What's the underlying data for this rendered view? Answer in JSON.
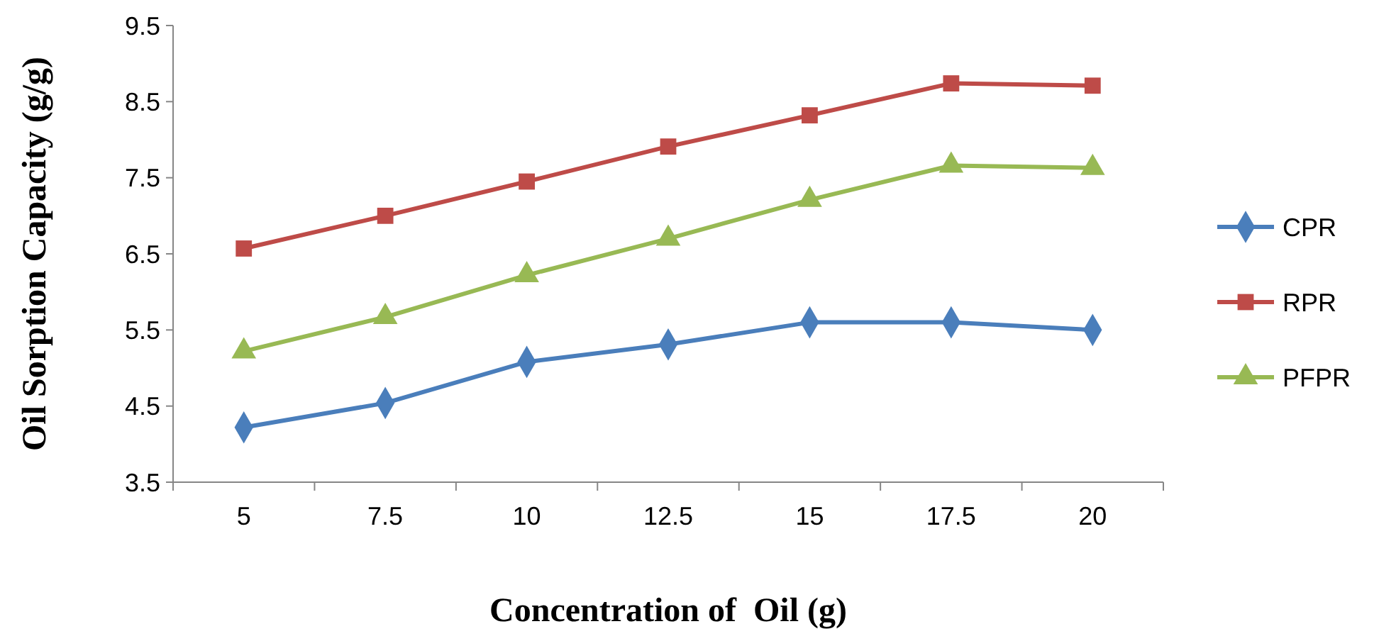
{
  "chart_data": {
    "type": "line",
    "xlabel": "Concentration of  Oil (g)",
    "ylabel": "Oil Sorption Capacity (g/g)",
    "categories": [
      "5",
      "7.5",
      "10",
      "12.5",
      "15",
      "17.5",
      "20"
    ],
    "ylim": [
      3.5,
      9.5
    ],
    "yticks": [
      3.5,
      4.5,
      5.5,
      6.5,
      7.5,
      8.5,
      9.5
    ],
    "grid": false,
    "legend": "right",
    "series": [
      {
        "name": "CPR",
        "color": "#4a7ebb",
        "marker": "diamond",
        "values": [
          4.22,
          4.54,
          5.08,
          5.31,
          5.6,
          5.6,
          5.5
        ]
      },
      {
        "name": "RPR",
        "color": "#be4b48",
        "marker": "square",
        "values": [
          6.57,
          7.0,
          7.45,
          7.91,
          8.32,
          8.74,
          8.71
        ]
      },
      {
        "name": "PFPR",
        "color": "#98b954",
        "marker": "triangle",
        "values": [
          5.22,
          5.67,
          6.22,
          6.7,
          7.21,
          7.66,
          7.63
        ]
      }
    ]
  }
}
